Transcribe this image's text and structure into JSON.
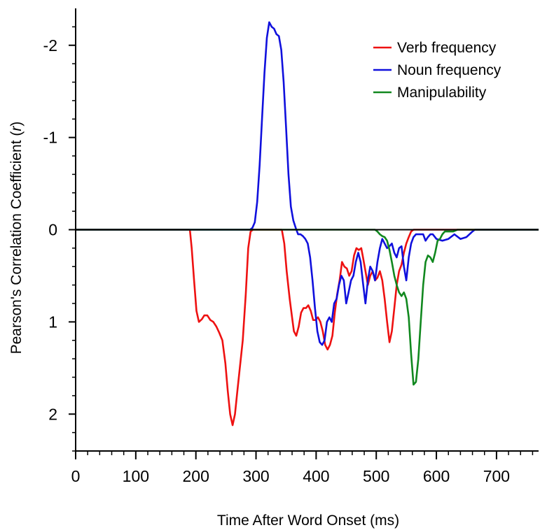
{
  "chart_data": {
    "type": "line",
    "xlabel": "Time After Word Onset (ms)",
    "ylabel_main": "Pearson's Correlation Coefficient (",
    "ylabel_italic": "r",
    "ylabel_close": ")",
    "xlim": [
      0,
      770
    ],
    "ylim": [
      -2.4,
      2.4
    ],
    "y_inverted": true,
    "x_ticks": [
      0,
      100,
      200,
      300,
      400,
      500,
      600,
      700
    ],
    "x_tick_labels": [
      "0",
      "100",
      "200",
      "300",
      "400",
      "500",
      "600",
      "700"
    ],
    "x_minor_step": 20,
    "y_ticks": [
      -2,
      -1,
      0,
      1,
      2
    ],
    "y_tick_labels": [
      "-2",
      "-1",
      "0",
      "1",
      "2"
    ],
    "y_minor_step": 0.2,
    "grid": false,
    "zero_line": true,
    "legend_position": "top-right",
    "series": [
      {
        "name": "Verb frequency",
        "color": "#ee1111",
        "points": [
          [
            0,
            0
          ],
          [
            190,
            0
          ],
          [
            193,
            0.2
          ],
          [
            197,
            0.55
          ],
          [
            201,
            0.88
          ],
          [
            205,
            1.0
          ],
          [
            210,
            0.97
          ],
          [
            214,
            0.93
          ],
          [
            219,
            0.93
          ],
          [
            224,
            0.98
          ],
          [
            229,
            1.0
          ],
          [
            234,
            1.05
          ],
          [
            239,
            1.12
          ],
          [
            244,
            1.2
          ],
          [
            249,
            1.45
          ],
          [
            253,
            1.75
          ],
          [
            257,
            2.0
          ],
          [
            261,
            2.12
          ],
          [
            265,
            2.0
          ],
          [
            269,
            1.75
          ],
          [
            273,
            1.5
          ],
          [
            278,
            1.2
          ],
          [
            283,
            0.7
          ],
          [
            287,
            0.2
          ],
          [
            291,
            0.02
          ],
          [
            295,
            0
          ],
          [
            343,
            0
          ],
          [
            347,
            0.15
          ],
          [
            351,
            0.45
          ],
          [
            356,
            0.75
          ],
          [
            360,
            0.95
          ],
          [
            363,
            1.1
          ],
          [
            367,
            1.15
          ],
          [
            371,
            1.05
          ],
          [
            375,
            0.9
          ],
          [
            379,
            0.85
          ],
          [
            383,
            0.85
          ],
          [
            387,
            0.82
          ],
          [
            391,
            0.88
          ],
          [
            395,
            0.98
          ],
          [
            399,
            0.98
          ],
          [
            403,
            0.95
          ],
          [
            407,
            1.0
          ],
          [
            411,
            1.1
          ],
          [
            415,
            1.25
          ],
          [
            419,
            1.3
          ],
          [
            423,
            1.25
          ],
          [
            427,
            1.15
          ],
          [
            431,
            0.9
          ],
          [
            435,
            0.7
          ],
          [
            439,
            0.55
          ],
          [
            443,
            0.35
          ],
          [
            447,
            0.4
          ],
          [
            451,
            0.42
          ],
          [
            455,
            0.5
          ],
          [
            459,
            0.45
          ],
          [
            463,
            0.28
          ],
          [
            467,
            0.2
          ],
          [
            471,
            0.22
          ],
          [
            475,
            0.2
          ],
          [
            478,
            0.3
          ],
          [
            482,
            0.45
          ],
          [
            486,
            0.6
          ],
          [
            490,
            0.5
          ],
          [
            494,
            0.45
          ],
          [
            498,
            0.55
          ],
          [
            502,
            0.52
          ],
          [
            506,
            0.45
          ],
          [
            510,
            0.55
          ],
          [
            514,
            0.75
          ],
          [
            518,
            1.0
          ],
          [
            522,
            1.22
          ],
          [
            526,
            1.1
          ],
          [
            530,
            0.85
          ],
          [
            534,
            0.6
          ],
          [
            538,
            0.45
          ],
          [
            542,
            0.38
          ],
          [
            546,
            0.25
          ],
          [
            550,
            0.15
          ],
          [
            554,
            0.08
          ],
          [
            558,
            0.02
          ],
          [
            562,
            0
          ],
          [
            770,
            0
          ]
        ]
      },
      {
        "name": "Noun frequency",
        "color": "#1010dd",
        "points": [
          [
            0,
            0
          ],
          [
            290,
            0
          ],
          [
            294,
            -0.02
          ],
          [
            298,
            -0.08
          ],
          [
            302,
            -0.3
          ],
          [
            306,
            -0.7
          ],
          [
            310,
            -1.2
          ],
          [
            314,
            -1.7
          ],
          [
            318,
            -2.08
          ],
          [
            322,
            -2.25
          ],
          [
            326,
            -2.2
          ],
          [
            330,
            -2.18
          ],
          [
            334,
            -2.12
          ],
          [
            338,
            -2.1
          ],
          [
            342,
            -1.95
          ],
          [
            346,
            -1.6
          ],
          [
            350,
            -1.1
          ],
          [
            354,
            -0.6
          ],
          [
            358,
            -0.25
          ],
          [
            362,
            -0.1
          ],
          [
            366,
            -0.02
          ],
          [
            370,
            0.05
          ],
          [
            374,
            0.05
          ],
          [
            378,
            0.07
          ],
          [
            382,
            0.1
          ],
          [
            386,
            0.15
          ],
          [
            390,
            0.3
          ],
          [
            394,
            0.55
          ],
          [
            398,
            0.85
          ],
          [
            402,
            1.1
          ],
          [
            406,
            1.22
          ],
          [
            410,
            1.25
          ],
          [
            414,
            1.2
          ],
          [
            418,
            1.0
          ],
          [
            422,
            0.95
          ],
          [
            426,
            1.0
          ],
          [
            430,
            0.8
          ],
          [
            434,
            0.75
          ],
          [
            438,
            0.6
          ],
          [
            442,
            0.5
          ],
          [
            446,
            0.55
          ],
          [
            450,
            0.8
          ],
          [
            454,
            0.68
          ],
          [
            458,
            0.55
          ],
          [
            462,
            0.5
          ],
          [
            466,
            0.35
          ],
          [
            470,
            0.25
          ],
          [
            474,
            0.35
          ],
          [
            478,
            0.58
          ],
          [
            482,
            0.8
          ],
          [
            486,
            0.55
          ],
          [
            490,
            0.4
          ],
          [
            494,
            0.45
          ],
          [
            498,
            0.55
          ],
          [
            502,
            0.35
          ],
          [
            506,
            0.2
          ],
          [
            510,
            0.1
          ],
          [
            514,
            0.15
          ],
          [
            518,
            0.2
          ],
          [
            522,
            0.18
          ],
          [
            526,
            0.15
          ],
          [
            530,
            0.25
          ],
          [
            534,
            0.3
          ],
          [
            538,
            0.2
          ],
          [
            542,
            0.18
          ],
          [
            546,
            0.4
          ],
          [
            550,
            0.55
          ],
          [
            554,
            0.3
          ],
          [
            558,
            0.15
          ],
          [
            562,
            0.08
          ],
          [
            566,
            0.05
          ],
          [
            570,
            0.05
          ],
          [
            574,
            0.05
          ],
          [
            578,
            0.05
          ],
          [
            582,
            0.12
          ],
          [
            586,
            0.08
          ],
          [
            590,
            0.05
          ],
          [
            594,
            0.05
          ],
          [
            600,
            0.1
          ],
          [
            610,
            0.12
          ],
          [
            620,
            0.1
          ],
          [
            630,
            0.05
          ],
          [
            640,
            0.1
          ],
          [
            650,
            0.08
          ],
          [
            660,
            0.02
          ],
          [
            664,
            0
          ],
          [
            770,
            0
          ]
        ]
      },
      {
        "name": "Manipulability",
        "color": "#11881f",
        "points": [
          [
            0,
            0
          ],
          [
            498,
            0
          ],
          [
            502,
            0.02
          ],
          [
            506,
            0.05
          ],
          [
            510,
            0.07
          ],
          [
            514,
            0.08
          ],
          [
            518,
            0.12
          ],
          [
            522,
            0.22
          ],
          [
            526,
            0.35
          ],
          [
            530,
            0.5
          ],
          [
            534,
            0.6
          ],
          [
            538,
            0.68
          ],
          [
            542,
            0.72
          ],
          [
            546,
            0.68
          ],
          [
            550,
            0.75
          ],
          [
            554,
            0.95
          ],
          [
            558,
            1.35
          ],
          [
            562,
            1.68
          ],
          [
            566,
            1.65
          ],
          [
            570,
            1.4
          ],
          [
            574,
            1.0
          ],
          [
            578,
            0.6
          ],
          [
            582,
            0.35
          ],
          [
            586,
            0.28
          ],
          [
            590,
            0.3
          ],
          [
            594,
            0.35
          ],
          [
            598,
            0.25
          ],
          [
            602,
            0.12
          ],
          [
            606,
            0.1
          ],
          [
            610,
            0.05
          ],
          [
            614,
            0.02
          ],
          [
            620,
            0.02
          ],
          [
            628,
            0.02
          ],
          [
            635,
            0
          ],
          [
            770,
            0
          ]
        ]
      }
    ]
  }
}
